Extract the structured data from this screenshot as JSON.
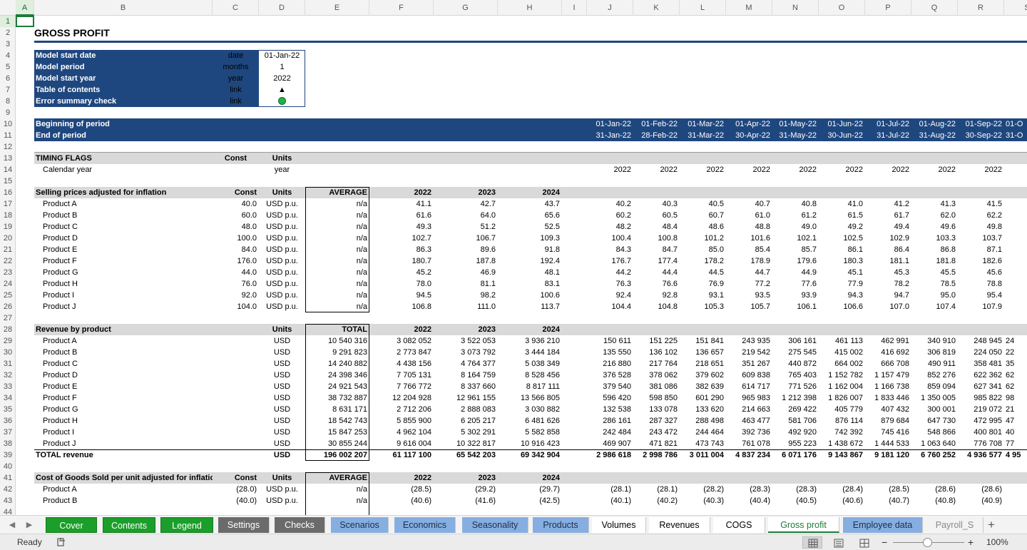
{
  "columns": [
    "A",
    "B",
    "C",
    "D",
    "E",
    "F",
    "G",
    "H",
    "I",
    "J",
    "K",
    "L",
    "M",
    "N",
    "O",
    "P",
    "Q",
    "R",
    "S"
  ],
  "active_column": "A",
  "rows": [
    1,
    2,
    3,
    4,
    5,
    6,
    7,
    8,
    9,
    10,
    11,
    12,
    13,
    14,
    15,
    16,
    17,
    18,
    19,
    20,
    21,
    22,
    23,
    24,
    25,
    26,
    27,
    28,
    29,
    30,
    31,
    32,
    33,
    34,
    35,
    36,
    37,
    38,
    39,
    40,
    41,
    42,
    43,
    44
  ],
  "active_row": 1,
  "title": "GROSS PROFIT",
  "info_block": [
    {
      "label": "Model start date",
      "unit": "date",
      "value": "01-Jan-22"
    },
    {
      "label": "Model period",
      "unit": "months",
      "value": "1"
    },
    {
      "label": "Model start year",
      "unit": "year",
      "value": "2022"
    },
    {
      "label": "Table of contents",
      "unit": "link",
      "value": "▲"
    },
    {
      "label": "Error summary check",
      "unit": "link",
      "value": ""
    }
  ],
  "error_indicator_color": "#22b14c",
  "period": {
    "begin_label": "Beginning of period",
    "end_label": "End of period",
    "begin_dates": [
      "01-Jan-22",
      "01-Feb-22",
      "01-Mar-22",
      "01-Apr-22",
      "01-May-22",
      "01-Jun-22",
      "01-Jul-22",
      "01-Aug-22",
      "01-Sep-22",
      "01-O"
    ],
    "end_dates": [
      "31-Jan-22",
      "28-Feb-22",
      "31-Mar-22",
      "30-Apr-22",
      "31-May-22",
      "30-Jun-22",
      "31-Jul-22",
      "31-Aug-22",
      "30-Sep-22",
      "31-O"
    ]
  },
  "timing": {
    "header": "TIMING FLAGS",
    "const_label": "Const",
    "units_label": "Units",
    "row_label": "Calendar year",
    "row_units": "year",
    "values": [
      "2022",
      "2022",
      "2022",
      "2022",
      "2022",
      "2022",
      "2022",
      "2022",
      "2022"
    ]
  },
  "prices": {
    "header": "Selling prices adjusted for inflation",
    "const_label": "Const",
    "units_label": "Units",
    "agg_label": "AVERAGE",
    "years": [
      "2022",
      "2023",
      "2024"
    ],
    "rows": [
      {
        "name": "Product A",
        "const": "40.0",
        "units": "USD p.u.",
        "agg": "n/a",
        "y": [
          "41.1",
          "42.7",
          "43.7"
        ],
        "m": [
          "40.2",
          "40.3",
          "40.5",
          "40.7",
          "40.8",
          "41.0",
          "41.2",
          "41.3",
          "41.5"
        ]
      },
      {
        "name": "Product B",
        "const": "60.0",
        "units": "USD p.u.",
        "agg": "n/a",
        "y": [
          "61.6",
          "64.0",
          "65.6"
        ],
        "m": [
          "60.2",
          "60.5",
          "60.7",
          "61.0",
          "61.2",
          "61.5",
          "61.7",
          "62.0",
          "62.2"
        ]
      },
      {
        "name": "Product C",
        "const": "48.0",
        "units": "USD p.u.",
        "agg": "n/a",
        "y": [
          "49.3",
          "51.2",
          "52.5"
        ],
        "m": [
          "48.2",
          "48.4",
          "48.6",
          "48.8",
          "49.0",
          "49.2",
          "49.4",
          "49.6",
          "49.8"
        ]
      },
      {
        "name": "Product D",
        "const": "100.0",
        "units": "USD p.u.",
        "agg": "n/a",
        "y": [
          "102.7",
          "106.7",
          "109.3"
        ],
        "m": [
          "100.4",
          "100.8",
          "101.2",
          "101.6",
          "102.1",
          "102.5",
          "102.9",
          "103.3",
          "103.7"
        ]
      },
      {
        "name": "Product E",
        "const": "84.0",
        "units": "USD p.u.",
        "agg": "n/a",
        "y": [
          "86.3",
          "89.6",
          "91.8"
        ],
        "m": [
          "84.3",
          "84.7",
          "85.0",
          "85.4",
          "85.7",
          "86.1",
          "86.4",
          "86.8",
          "87.1"
        ]
      },
      {
        "name": "Product F",
        "const": "176.0",
        "units": "USD p.u.",
        "agg": "n/a",
        "y": [
          "180.7",
          "187.8",
          "192.4"
        ],
        "m": [
          "176.7",
          "177.4",
          "178.2",
          "178.9",
          "179.6",
          "180.3",
          "181.1",
          "181.8",
          "182.6"
        ]
      },
      {
        "name": "Product G",
        "const": "44.0",
        "units": "USD p.u.",
        "agg": "n/a",
        "y": [
          "45.2",
          "46.9",
          "48.1"
        ],
        "m": [
          "44.2",
          "44.4",
          "44.5",
          "44.7",
          "44.9",
          "45.1",
          "45.3",
          "45.5",
          "45.6"
        ]
      },
      {
        "name": "Product H",
        "const": "76.0",
        "units": "USD p.u.",
        "agg": "n/a",
        "y": [
          "78.0",
          "81.1",
          "83.1"
        ],
        "m": [
          "76.3",
          "76.6",
          "76.9",
          "77.2",
          "77.6",
          "77.9",
          "78.2",
          "78.5",
          "78.8"
        ]
      },
      {
        "name": "Product I",
        "const": "92.0",
        "units": "USD p.u.",
        "agg": "n/a",
        "y": [
          "94.5",
          "98.2",
          "100.6"
        ],
        "m": [
          "92.4",
          "92.8",
          "93.1",
          "93.5",
          "93.9",
          "94.3",
          "94.7",
          "95.0",
          "95.4"
        ]
      },
      {
        "name": "Product J",
        "const": "104.0",
        "units": "USD p.u.",
        "agg": "n/a",
        "y": [
          "106.8",
          "111.0",
          "113.7"
        ],
        "m": [
          "104.4",
          "104.8",
          "105.3",
          "105.7",
          "106.1",
          "106.6",
          "107.0",
          "107.4",
          "107.9"
        ]
      }
    ]
  },
  "revenue": {
    "header": "Revenue by product",
    "units_label": "Units",
    "agg_label": "TOTAL",
    "years": [
      "2022",
      "2023",
      "2024"
    ],
    "rows": [
      {
        "name": "Product A",
        "units": "USD",
        "agg": "10 540 316",
        "y": [
          "3 082 052",
          "3 522 053",
          "3 936 210"
        ],
        "m": [
          "150 611",
          "151 225",
          "151 841",
          "243 935",
          "306 161",
          "461 113",
          "462 991",
          "340 910",
          "248 945"
        ],
        "cut": "24"
      },
      {
        "name": "Product B",
        "units": "USD",
        "agg": "9 291 823",
        "y": [
          "2 773 847",
          "3 073 792",
          "3 444 184"
        ],
        "m": [
          "135 550",
          "136 102",
          "136 657",
          "219 542",
          "275 545",
          "415 002",
          "416 692",
          "306 819",
          "224 050"
        ],
        "cut": "22"
      },
      {
        "name": "Product C",
        "units": "USD",
        "agg": "14 240 882",
        "y": [
          "4 438 156",
          "4 764 377",
          "5 038 349"
        ],
        "m": [
          "216 880",
          "217 764",
          "218 651",
          "351 267",
          "440 872",
          "664 002",
          "666 708",
          "490 911",
          "358 481"
        ],
        "cut": "35"
      },
      {
        "name": "Product D",
        "units": "USD",
        "agg": "24 398 346",
        "y": [
          "7 705 131",
          "8 164 759",
          "8 528 456"
        ],
        "m": [
          "376 528",
          "378 062",
          "379 602",
          "609 838",
          "765 403",
          "1 152 782",
          "1 157 479",
          "852 276",
          "622 362"
        ],
        "cut": "62"
      },
      {
        "name": "Product E",
        "units": "USD",
        "agg": "24 921 543",
        "y": [
          "7 766 772",
          "8 337 660",
          "8 817 111"
        ],
        "m": [
          "379 540",
          "381 086",
          "382 639",
          "614 717",
          "771 526",
          "1 162 004",
          "1 166 738",
          "859 094",
          "627 341"
        ],
        "cut": "62"
      },
      {
        "name": "Product F",
        "units": "USD",
        "agg": "38 732 887",
        "y": [
          "12 204 928",
          "12 961 155",
          "13 566 805"
        ],
        "m": [
          "596 420",
          "598 850",
          "601 290",
          "965 983",
          "1 212 398",
          "1 826 007",
          "1 833 446",
          "1 350 005",
          "985 822"
        ],
        "cut": "98"
      },
      {
        "name": "Product G",
        "units": "USD",
        "agg": "8 631 171",
        "y": [
          "2 712 206",
          "2 888 083",
          "3 030 882"
        ],
        "m": [
          "132 538",
          "133 078",
          "133 620",
          "214 663",
          "269 422",
          "405 779",
          "407 432",
          "300 001",
          "219 072"
        ],
        "cut": "21"
      },
      {
        "name": "Product H",
        "units": "USD",
        "agg": "18 542 743",
        "y": [
          "5 855 900",
          "6 205 217",
          "6 481 626"
        ],
        "m": [
          "286 161",
          "287 327",
          "288 498",
          "463 477",
          "581 706",
          "876 114",
          "879 684",
          "647 730",
          "472 995"
        ],
        "cut": "47"
      },
      {
        "name": "Product I",
        "units": "USD",
        "agg": "15 847 253",
        "y": [
          "4 962 104",
          "5 302 291",
          "5 582 858"
        ],
        "m": [
          "242 484",
          "243 472",
          "244 464",
          "392 736",
          "492 920",
          "742 392",
          "745 416",
          "548 866",
          "400 801"
        ],
        "cut": "40"
      },
      {
        "name": "Product J",
        "units": "USD",
        "agg": "30 855 244",
        "y": [
          "9 616 004",
          "10 322 817",
          "10 916 423"
        ],
        "m": [
          "469 907",
          "471 821",
          "473 743",
          "761 078",
          "955 223",
          "1 438 672",
          "1 444 533",
          "1 063 640",
          "776 708"
        ],
        "cut": "77"
      }
    ],
    "total": {
      "name": "TOTAL revenue",
      "units": "USD",
      "agg": "196 002 207",
      "y": [
        "61 117 100",
        "65 542 203",
        "69 342 904"
      ],
      "m": [
        "2 986 618",
        "2 998 786",
        "3 011 004",
        "4 837 234",
        "6 071 176",
        "9 143 867",
        "9 181 120",
        "6 760 252",
        "4 936 577"
      ],
      "cut": "4 95"
    }
  },
  "cogs": {
    "header": "Cost of Goods Sold per unit adjusted for inflation",
    "const_label": "Const",
    "units_label": "Units",
    "agg_label": "AVERAGE",
    "years": [
      "2022",
      "2023",
      "2024"
    ],
    "rows": [
      {
        "name": "Product A",
        "const": "(28.0)",
        "units": "USD p.u.",
        "agg": "n/a",
        "y": [
          "(28.5)",
          "(29.2)",
          "(29.7)"
        ],
        "m": [
          "(28.1)",
          "(28.1)",
          "(28.2)",
          "(28.3)",
          "(28.3)",
          "(28.4)",
          "(28.5)",
          "(28.6)",
          "(28.6)"
        ]
      },
      {
        "name": "Product B",
        "const": "(40.0)",
        "units": "USD p.u.",
        "agg": "n/a",
        "y": [
          "(40.6)",
          "(41.6)",
          "(42.5)"
        ],
        "m": [
          "(40.1)",
          "(40.2)",
          "(40.3)",
          "(40.4)",
          "(40.5)",
          "(40.6)",
          "(40.7)",
          "(40.8)",
          "(40.9)"
        ]
      }
    ]
  },
  "tabs": [
    {
      "label": "Cover",
      "style": "green"
    },
    {
      "label": "Contents",
      "style": "green"
    },
    {
      "label": "Legend",
      "style": "green"
    },
    {
      "label": "Settings",
      "style": "grey"
    },
    {
      "label": "Checks",
      "style": "grey"
    },
    {
      "label": "Scenarios",
      "style": "blue"
    },
    {
      "label": "Economics",
      "style": "blue"
    },
    {
      "label": "Seasonality",
      "style": "blue"
    },
    {
      "label": "Products",
      "style": "blue"
    },
    {
      "label": "Volumes",
      "style": "white"
    },
    {
      "label": "Revenues",
      "style": "white"
    },
    {
      "label": "COGS",
      "style": "white"
    },
    {
      "label": "Gross profit",
      "style": "active"
    },
    {
      "label": "Employee data",
      "style": "blue"
    },
    {
      "label": "Payroll_S",
      "style": "faded"
    }
  ],
  "status": {
    "ready": "Ready",
    "zoom": "100%"
  }
}
